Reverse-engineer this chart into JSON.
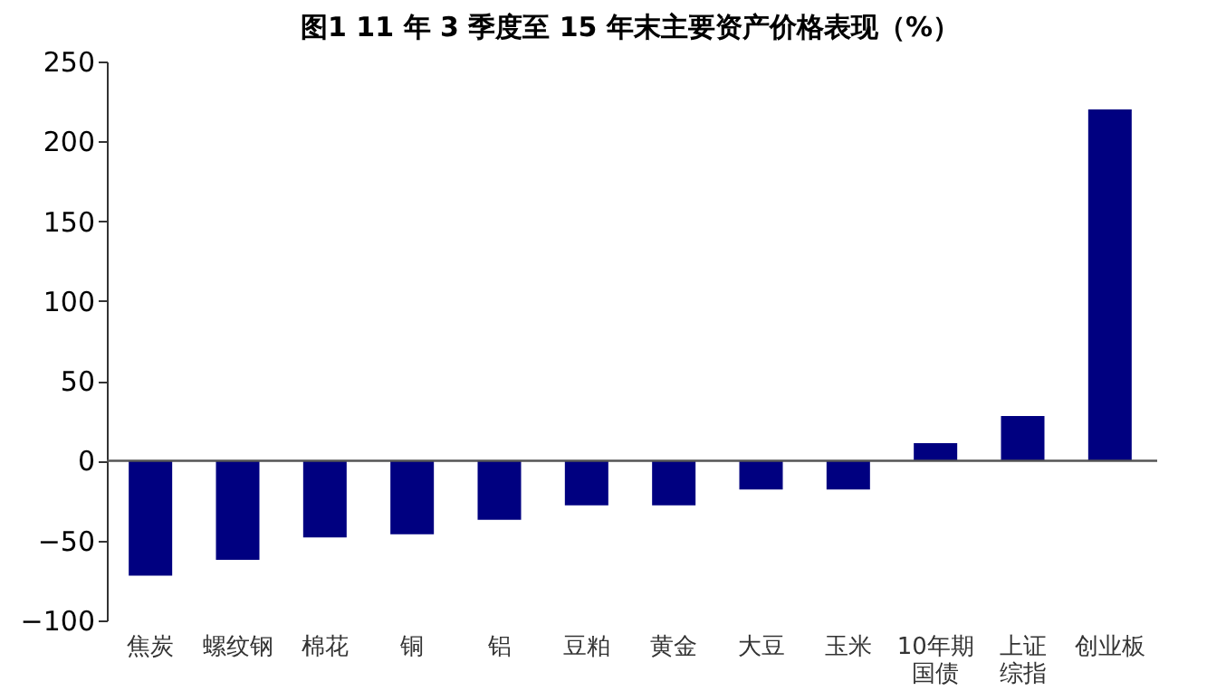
{
  "chart_data": {
    "type": "bar",
    "title": "图1  11 年 3 季度至 15 年末主要资产价格表现（%）",
    "categories": [
      "焦炭",
      "螺纹钢",
      "棉花",
      "铜",
      "铝",
      "豆粕",
      "黄金",
      "大豆",
      "玉米",
      "10年期国债",
      "上证综指",
      "创业板"
    ],
    "values": [
      -72,
      -62,
      -48,
      -46,
      -37,
      -28,
      -28,
      -18,
      -18,
      11,
      28,
      220
    ],
    "color": "#000080",
    "ylim": [
      -100,
      250
    ],
    "yticks": [
      -100,
      -50,
      0,
      50,
      100,
      150,
      200,
      250
    ]
  }
}
